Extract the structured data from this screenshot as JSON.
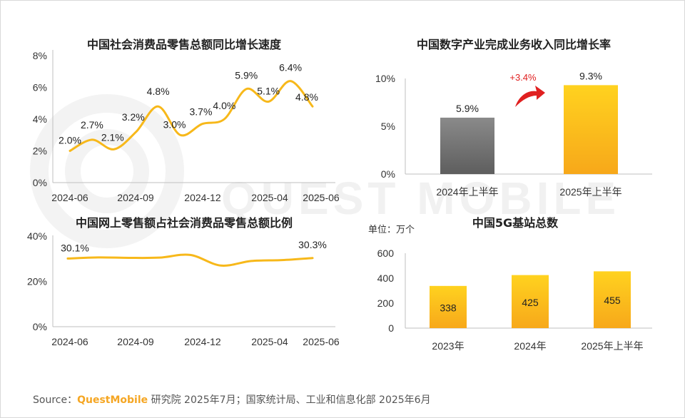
{
  "chart_data": [
    {
      "type": "line",
      "title": "中国社会消费品零售总额同比增长速度",
      "x_labels": [
        "2024-06",
        "2024-09",
        "2024-12",
        "2025-04",
        "2025-06"
      ],
      "y_ticks": [
        "0%",
        "2%",
        "4%",
        "6%",
        "8%"
      ],
      "ylim": [
        0,
        8
      ],
      "series": [
        {
          "values": [
            2.0,
            2.7,
            2.1,
            3.2,
            4.8,
            3.0,
            3.7,
            4.0,
            5.9,
            5.1,
            6.4,
            4.8
          ],
          "labels": [
            "2.0%",
            "2.7%",
            "2.1%",
            "3.2%",
            "4.8%",
            "3.0%",
            "3.7%",
            "4.0%",
            "5.9%",
            "5.1%",
            "6.4%",
            "4.8%"
          ]
        }
      ],
      "color": "#f7b81a"
    },
    {
      "type": "bar",
      "title": "中国数字产业完成业务收入同比增长率",
      "categories": [
        "2024年上半年",
        "2025年上半年"
      ],
      "values": [
        5.9,
        9.3
      ],
      "labels": [
        "5.9%",
        "9.3%"
      ],
      "y_ticks": [
        "0%",
        "5%",
        "10%"
      ],
      "ylim": [
        0,
        10
      ],
      "annotation": "+3.4%",
      "colors": [
        "#7a7a7a",
        "#f7b81a"
      ]
    },
    {
      "type": "line",
      "title": "中国网上零售额占社会消费品零售总额比例",
      "x_labels": [
        "2024-06",
        "2024-09",
        "2024-12",
        "2025-04",
        "2025-06"
      ],
      "y_ticks": [
        "0%",
        "20%",
        "40%"
      ],
      "ylim": [
        0,
        40
      ],
      "series": [
        {
          "values": [
            30.1,
            30.6,
            30.4,
            30.5,
            31.7,
            27.0,
            29.0,
            29.4,
            30.3
          ],
          "first_label": "30.1%",
          "last_label": "30.3%"
        }
      ],
      "color": "#f7b81a"
    },
    {
      "type": "bar",
      "title": "中国5G基站总数",
      "unit_note": "单位：万个",
      "categories": [
        "2023年",
        "2024年",
        "2025年上半年"
      ],
      "values": [
        338,
        425,
        455
      ],
      "labels": [
        "338",
        "425",
        "455"
      ],
      "y_ticks": [
        "0",
        "200",
        "400",
        "600"
      ],
      "ylim": [
        0,
        600
      ],
      "color": "#f7b81a"
    }
  ],
  "footer": {
    "prefix": "Source：",
    "brand": "QuestMobile",
    "rest": " 研究院 2025年7月；国家统计局、工业和信息化部 2025年6月"
  },
  "watermark": "QUEST MOBILE"
}
